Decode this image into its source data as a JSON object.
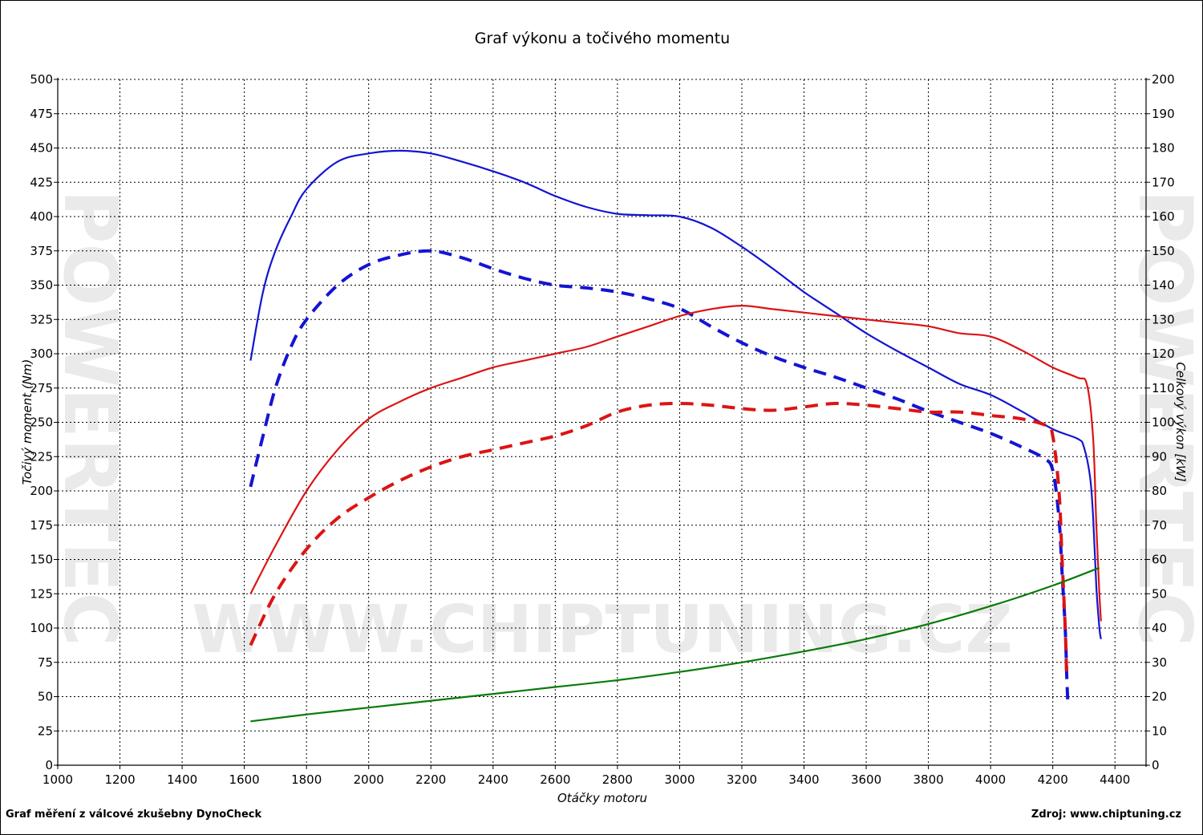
{
  "footer": {
    "left": "Graf měření z válcové zkušebny DynoCheck",
    "right": "Zdroj: www.chiptuning.cz"
  },
  "watermark": {
    "center": "WWW.CHIPTUNING.CZ",
    "side": "POWERTEC"
  },
  "chart_data": {
    "type": "line",
    "title": "Graf výkonu a točivého momentu",
    "xlabel": "Otáčky motoru",
    "ylabel_left": "Točivý moment (Nm)",
    "ylabel_right": "Celkový výkon [kW]",
    "xlim": [
      1000,
      4500
    ],
    "ylim_left": [
      0,
      500
    ],
    "ylim_right": [
      0,
      200
    ],
    "x_ticks": [
      1000,
      1200,
      1400,
      1600,
      1800,
      2000,
      2200,
      2400,
      2600,
      2800,
      3000,
      3200,
      3400,
      3600,
      3800,
      4000,
      4200,
      4400
    ],
    "y_ticks_left": [
      0,
      25,
      50,
      75,
      100,
      125,
      150,
      175,
      200,
      225,
      250,
      275,
      300,
      325,
      350,
      375,
      400,
      425,
      450,
      475,
      500
    ],
    "y_ticks_right": [
      0,
      10,
      20,
      30,
      40,
      50,
      60,
      70,
      80,
      90,
      100,
      110,
      120,
      130,
      140,
      150,
      160,
      170,
      180,
      190,
      200
    ],
    "grid": true,
    "legend": "none",
    "series": [
      {
        "axis": "left",
        "color": "#1414d2",
        "dash": false,
        "points": [
          [
            1620,
            295
          ],
          [
            1660,
            345
          ],
          [
            1700,
            375
          ],
          [
            1750,
            400
          ],
          [
            1800,
            420
          ],
          [
            1900,
            440
          ],
          [
            2000,
            446
          ],
          [
            2100,
            448
          ],
          [
            2200,
            446
          ],
          [
            2300,
            440
          ],
          [
            2400,
            433
          ],
          [
            2500,
            425
          ],
          [
            2600,
            415
          ],
          [
            2700,
            407
          ],
          [
            2800,
            402
          ],
          [
            2900,
            401
          ],
          [
            3000,
            400
          ],
          [
            3100,
            392
          ],
          [
            3200,
            378
          ],
          [
            3300,
            362
          ],
          [
            3400,
            345
          ],
          [
            3500,
            330
          ],
          [
            3600,
            315
          ],
          [
            3700,
            302
          ],
          [
            3800,
            290
          ],
          [
            3900,
            278
          ],
          [
            4000,
            270
          ],
          [
            4100,
            258
          ],
          [
            4200,
            245
          ],
          [
            4280,
            238
          ],
          [
            4300,
            232
          ],
          [
            4320,
            210
          ],
          [
            4330,
            180
          ],
          [
            4340,
            130
          ],
          [
            4350,
            100
          ],
          [
            4355,
            92
          ]
        ]
      },
      {
        "axis": "left",
        "color": "#1414d2",
        "dash": true,
        "points": [
          [
            1620,
            203
          ],
          [
            1660,
            240
          ],
          [
            1700,
            275
          ],
          [
            1750,
            305
          ],
          [
            1800,
            325
          ],
          [
            1900,
            350
          ],
          [
            2000,
            365
          ],
          [
            2100,
            372
          ],
          [
            2200,
            375
          ],
          [
            2300,
            370
          ],
          [
            2400,
            362
          ],
          [
            2500,
            355
          ],
          [
            2600,
            350
          ],
          [
            2700,
            348
          ],
          [
            2800,
            345
          ],
          [
            2900,
            340
          ],
          [
            3000,
            333
          ],
          [
            3100,
            320
          ],
          [
            3200,
            308
          ],
          [
            3300,
            298
          ],
          [
            3400,
            290
          ],
          [
            3500,
            283
          ],
          [
            3600,
            275
          ],
          [
            3700,
            267
          ],
          [
            3800,
            258
          ],
          [
            3900,
            250
          ],
          [
            4000,
            242
          ],
          [
            4100,
            232
          ],
          [
            4170,
            224
          ],
          [
            4200,
            215
          ],
          [
            4220,
            180
          ],
          [
            4230,
            140
          ],
          [
            4240,
            100
          ],
          [
            4245,
            65
          ],
          [
            4248,
            48
          ]
        ]
      },
      {
        "axis": "right",
        "color": "#dc1414",
        "dash": false,
        "points": [
          [
            1620,
            50
          ],
          [
            1700,
            64
          ],
          [
            1800,
            80
          ],
          [
            1900,
            92
          ],
          [
            2000,
            101
          ],
          [
            2100,
            106
          ],
          [
            2200,
            110
          ],
          [
            2300,
            113
          ],
          [
            2400,
            116
          ],
          [
            2500,
            118
          ],
          [
            2600,
            120
          ],
          [
            2700,
            122
          ],
          [
            2800,
            125
          ],
          [
            2900,
            128
          ],
          [
            3000,
            131
          ],
          [
            3100,
            133
          ],
          [
            3200,
            134
          ],
          [
            3300,
            133
          ],
          [
            3400,
            132
          ],
          [
            3500,
            131
          ],
          [
            3600,
            130
          ],
          [
            3700,
            129
          ],
          [
            3800,
            128
          ],
          [
            3900,
            126
          ],
          [
            4000,
            125
          ],
          [
            4100,
            121
          ],
          [
            4200,
            116
          ],
          [
            4280,
            113
          ],
          [
            4310,
            111
          ],
          [
            4330,
            95
          ],
          [
            4340,
            70
          ],
          [
            4350,
            50
          ],
          [
            4355,
            42
          ]
        ]
      },
      {
        "axis": "right",
        "color": "#dc1414",
        "dash": true,
        "points": [
          [
            1620,
            35
          ],
          [
            1700,
            50
          ],
          [
            1800,
            63
          ],
          [
            1900,
            72
          ],
          [
            2000,
            78
          ],
          [
            2100,
            83
          ],
          [
            2200,
            87
          ],
          [
            2300,
            90
          ],
          [
            2400,
            92
          ],
          [
            2500,
            94
          ],
          [
            2600,
            96
          ],
          [
            2700,
            99
          ],
          [
            2800,
            103
          ],
          [
            2900,
            105
          ],
          [
            3000,
            105.5
          ],
          [
            3100,
            105
          ],
          [
            3200,
            104
          ],
          [
            3300,
            103.5
          ],
          [
            3400,
            104.5
          ],
          [
            3500,
            105.5
          ],
          [
            3600,
            105
          ],
          [
            3700,
            104
          ],
          [
            3800,
            103
          ],
          [
            3900,
            103
          ],
          [
            4000,
            102
          ],
          [
            4100,
            101
          ],
          [
            4180,
            99
          ],
          [
            4200,
            96
          ],
          [
            4220,
            80
          ],
          [
            4230,
            60
          ],
          [
            4240,
            40
          ],
          [
            4245,
            25
          ]
        ]
      },
      {
        "axis": "left",
        "color": "#0a7a0a",
        "dash": false,
        "points": [
          [
            1620,
            32
          ],
          [
            1800,
            37
          ],
          [
            2000,
            42
          ],
          [
            2200,
            47
          ],
          [
            2400,
            52
          ],
          [
            2600,
            57
          ],
          [
            2800,
            62
          ],
          [
            3000,
            68
          ],
          [
            3200,
            75
          ],
          [
            3400,
            83
          ],
          [
            3600,
            92
          ],
          [
            3800,
            103
          ],
          [
            4000,
            116
          ],
          [
            4200,
            131
          ],
          [
            4350,
            144
          ]
        ]
      }
    ]
  }
}
